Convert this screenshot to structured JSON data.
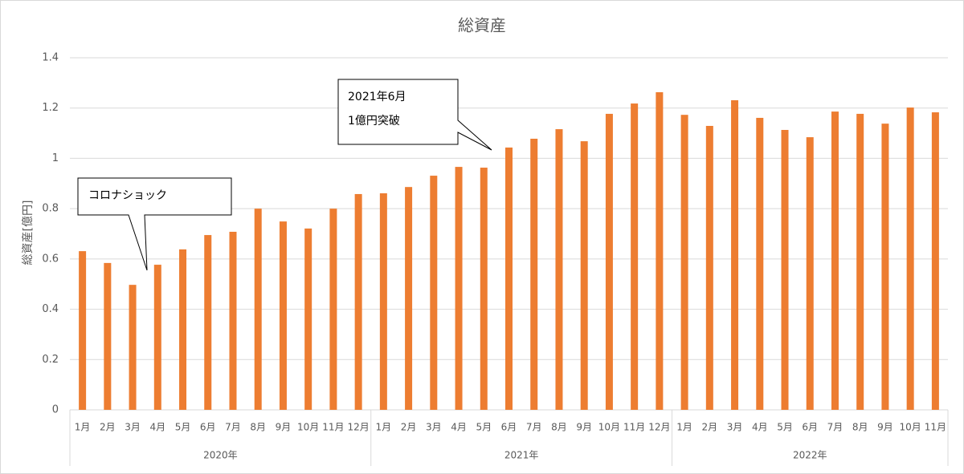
{
  "chart_data": {
    "type": "bar",
    "title": "総資産",
    "y_label": "総資産[億円]",
    "color": "#ed7d31",
    "ylim": [
      0,
      1.4
    ],
    "yticks": [
      0,
      0.2,
      0.4,
      0.6,
      0.8,
      1,
      1.2,
      1.4
    ],
    "grid": true,
    "groups": [
      {
        "label": "2020年",
        "categories": [
          "1月",
          "2月",
          "3月",
          "4月",
          "5月",
          "6月",
          "7月",
          "8月",
          "9月",
          "10月",
          "11月",
          "12月"
        ],
        "values": [
          0.631,
          0.584,
          0.497,
          0.577,
          0.638,
          0.695,
          0.708,
          0.8,
          0.749,
          0.721,
          0.8,
          0.858
        ]
      },
      {
        "label": "2021年",
        "categories": [
          "1月",
          "2月",
          "3月",
          "4月",
          "5月",
          "6月",
          "7月",
          "8月",
          "9月",
          "10月",
          "11月",
          "12月"
        ],
        "values": [
          0.861,
          0.886,
          0.931,
          0.966,
          0.963,
          1.043,
          1.078,
          1.116,
          1.068,
          1.177,
          1.218,
          1.263
        ]
      },
      {
        "label": "2022年",
        "categories": [
          "1月",
          "2月",
          "3月",
          "4月",
          "5月",
          "6月",
          "7月",
          "8月",
          "9月",
          "10月",
          "11月"
        ],
        "values": [
          1.173,
          1.129,
          1.231,
          1.161,
          1.113,
          1.084,
          1.186,
          1.177,
          1.138,
          1.202,
          1.183
        ]
      }
    ],
    "annotations": [
      {
        "lines": [
          "コロナショック"
        ]
      },
      {
        "lines": [
          "2021年6月",
          "1億円突破"
        ]
      }
    ]
  }
}
